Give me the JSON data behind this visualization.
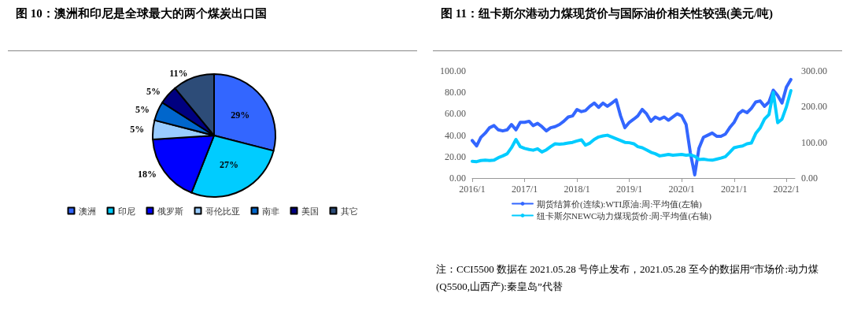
{
  "chart_data": [
    {
      "type": "pie",
      "title": "图 10：澳洲和印尼是全球最大的两个煤炭出口国",
      "categories": [
        "澳洲",
        "印尼",
        "俄罗斯",
        "哥伦比亚",
        "南非",
        "美国",
        "其它"
      ],
      "values": [
        29,
        27,
        18,
        5,
        5,
        5,
        11
      ],
      "colors": [
        "#3366ff",
        "#00ccff",
        "#0000ff",
        "#99ccff",
        "#0066cc",
        "#000080",
        "#2d4c78"
      ],
      "value_labels": [
        "29%",
        "27%",
        "18%",
        "5%",
        "5%",
        "5%",
        "11%"
      ],
      "legend": "bottom"
    },
    {
      "type": "line",
      "title": "图 11：纽卡斯尔港动力煤现货价与国际油价相关性较强(美元/吨)",
      "x": [
        "2016-01",
        "2016-02",
        "2016-03",
        "2016-04",
        "2016-05",
        "2016-06",
        "2016-07",
        "2016-08",
        "2016-09",
        "2016-10",
        "2016-11",
        "2016-12",
        "2017-01",
        "2017-02",
        "2017-03",
        "2017-04",
        "2017-05",
        "2017-06",
        "2017-07",
        "2017-08",
        "2017-09",
        "2017-10",
        "2017-11",
        "2017-12",
        "2018-01",
        "2018-02",
        "2018-03",
        "2018-04",
        "2018-05",
        "2018-06",
        "2018-07",
        "2018-08",
        "2018-09",
        "2018-10",
        "2018-11",
        "2018-12",
        "2019-01",
        "2019-02",
        "2019-03",
        "2019-04",
        "2019-05",
        "2019-06",
        "2019-07",
        "2019-08",
        "2019-09",
        "2019-10",
        "2019-11",
        "2019-12",
        "2020-01",
        "2020-02",
        "2020-03",
        "2020-04",
        "2020-05",
        "2020-06",
        "2020-07",
        "2020-08",
        "2020-09",
        "2020-10",
        "2020-11",
        "2020-12",
        "2021-01",
        "2021-02",
        "2021-03",
        "2021-04",
        "2021-05",
        "2021-06",
        "2021-07",
        "2021-08",
        "2021-09",
        "2021-10",
        "2021-11",
        "2021-12",
        "2022-01",
        "2022-02"
      ],
      "series": [
        {
          "name": "期货结算价(连续):WTI原油:周:平均值(左轴)",
          "color": "#3366ff",
          "values": [
            35,
            30,
            38,
            42,
            47,
            49,
            45,
            44,
            45,
            50,
            45,
            52,
            52,
            53,
            49,
            51,
            48,
            44,
            47,
            48,
            50,
            53,
            57,
            58,
            64,
            62,
            63,
            67,
            70,
            66,
            70,
            67,
            70,
            73,
            58,
            47,
            52,
            55,
            58,
            64,
            60,
            53,
            57,
            55,
            57,
            54,
            57,
            60,
            58,
            50,
            24,
            3,
            28,
            38,
            40,
            42,
            39,
            39,
            41,
            47,
            52,
            60,
            63,
            61,
            65,
            71,
            72,
            67,
            71,
            82,
            77,
            70,
            85,
            92
          ]
        },
        {
          "name": "纽卡斯尔NEWC动力煤现货价:周:平均值(右轴)",
          "color": "#00ccff",
          "axis": "y2",
          "values": [
            47,
            46,
            49,
            50,
            49,
            50,
            57,
            62,
            68,
            85,
            108,
            88,
            83,
            80,
            78,
            82,
            73,
            79,
            88,
            96,
            95,
            96,
            98,
            100,
            104,
            107,
            92,
            98,
            108,
            115,
            118,
            120,
            115,
            110,
            105,
            100,
            99,
            96,
            88,
            85,
            79,
            72,
            68,
            62,
            64,
            66,
            64,
            65,
            66,
            64,
            65,
            61,
            52,
            53,
            51,
            50,
            53,
            56,
            60,
            72,
            85,
            88,
            90,
            96,
            98,
            125,
            140,
            165,
            178,
            240,
            155,
            165,
            200,
            245
          ]
        }
      ],
      "xlim": [
        "2016-01",
        "2022-03"
      ],
      "xticks": [
        {
          "value": "2016-01",
          "label": "2016/1"
        },
        {
          "value": "2017-01",
          "label": "2017/1"
        },
        {
          "value": "2018-01",
          "label": "2018/1"
        },
        {
          "value": "2019-01",
          "label": "2019/1"
        },
        {
          "value": "2020-01",
          "label": "2020/1"
        },
        {
          "value": "2021-01",
          "label": "2021/1"
        },
        {
          "value": "2022-01",
          "label": "2022/1"
        }
      ],
      "ylim": [
        0,
        100
      ],
      "yticks": [
        {
          "value": 0,
          "label": "0.00"
        },
        {
          "value": 20,
          "label": "20.00"
        },
        {
          "value": 40,
          "label": "40.00"
        },
        {
          "value": 60,
          "label": "60.00"
        },
        {
          "value": 80,
          "label": "80.00"
        },
        {
          "value": 100,
          "label": "100.00"
        }
      ],
      "y2lim": [
        0,
        300
      ],
      "y2ticks": [
        {
          "value": 0,
          "label": "0.00"
        },
        {
          "value": 100,
          "label": "100.00"
        },
        {
          "value": 200,
          "label": "200.00"
        },
        {
          "value": 300,
          "label": "300.00"
        }
      ],
      "legend": "bottom",
      "grid": false,
      "marker": "none",
      "line_style": "solid",
      "annotations": [
        "注：CCI5500 数据在 2021.05.28 号停止发布，2021.05.28 至今的数据用“市场价:动力煤(Q5500,山西产):秦皇岛”代替"
      ]
    }
  ]
}
